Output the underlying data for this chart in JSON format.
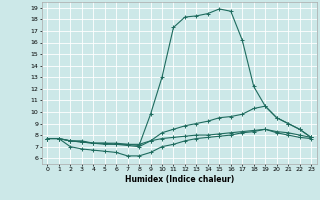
{
  "xlabel": "Humidex (Indice chaleur)",
  "bg_color": "#cce8e8",
  "grid_color": "#ffffff",
  "line_color": "#1e6b5e",
  "xlim": [
    -0.5,
    23.5
  ],
  "ylim": [
    5.5,
    19.5
  ],
  "xticks": [
    0,
    1,
    2,
    3,
    4,
    5,
    6,
    7,
    8,
    9,
    10,
    11,
    12,
    13,
    14,
    15,
    16,
    17,
    18,
    19,
    20,
    21,
    22,
    23
  ],
  "yticks": [
    6,
    7,
    8,
    9,
    10,
    11,
    12,
    13,
    14,
    15,
    16,
    17,
    18,
    19
  ],
  "line1_x": [
    0,
    1,
    2,
    3,
    4,
    5,
    6,
    7,
    8,
    9,
    10,
    11,
    12,
    13,
    14,
    15,
    16,
    17,
    18,
    19,
    20,
    21,
    22,
    23
  ],
  "line1_y": [
    7.7,
    7.7,
    7.5,
    7.5,
    7.3,
    7.3,
    7.3,
    7.2,
    7.1,
    9.8,
    13.0,
    17.3,
    18.2,
    18.3,
    18.5,
    18.9,
    18.7,
    16.2,
    12.2,
    10.5,
    9.5,
    9.0,
    8.5,
    7.8
  ],
  "line2_x": [
    0,
    1,
    2,
    3,
    4,
    5,
    6,
    7,
    8,
    9,
    10,
    11,
    12,
    13,
    14,
    15,
    16,
    17,
    18,
    19,
    20,
    21,
    22,
    23
  ],
  "line2_y": [
    7.7,
    7.7,
    7.5,
    7.4,
    7.3,
    7.3,
    7.2,
    7.1,
    7.0,
    7.5,
    8.2,
    8.5,
    8.8,
    9.0,
    9.2,
    9.5,
    9.6,
    9.8,
    10.3,
    10.5,
    9.5,
    9.0,
    8.5,
    7.8
  ],
  "line3_x": [
    0,
    1,
    2,
    3,
    4,
    5,
    6,
    7,
    8,
    9,
    10,
    11,
    12,
    13,
    14,
    15,
    16,
    17,
    18,
    19,
    20,
    21,
    22,
    23
  ],
  "line3_y": [
    7.7,
    7.7,
    7.0,
    6.8,
    6.7,
    6.6,
    6.5,
    6.2,
    6.2,
    6.5,
    7.0,
    7.2,
    7.5,
    7.7,
    7.8,
    7.9,
    8.0,
    8.2,
    8.3,
    8.5,
    8.2,
    8.0,
    7.8,
    7.7
  ],
  "line4_x": [
    0,
    1,
    2,
    3,
    4,
    5,
    6,
    7,
    8,
    9,
    10,
    11,
    12,
    13,
    14,
    15,
    16,
    17,
    18,
    19,
    20,
    21,
    22,
    23
  ],
  "line4_y": [
    7.7,
    7.7,
    7.5,
    7.4,
    7.3,
    7.2,
    7.2,
    7.2,
    7.2,
    7.5,
    7.7,
    7.8,
    7.9,
    8.0,
    8.0,
    8.1,
    8.2,
    8.3,
    8.4,
    8.5,
    8.3,
    8.2,
    8.0,
    7.8
  ]
}
